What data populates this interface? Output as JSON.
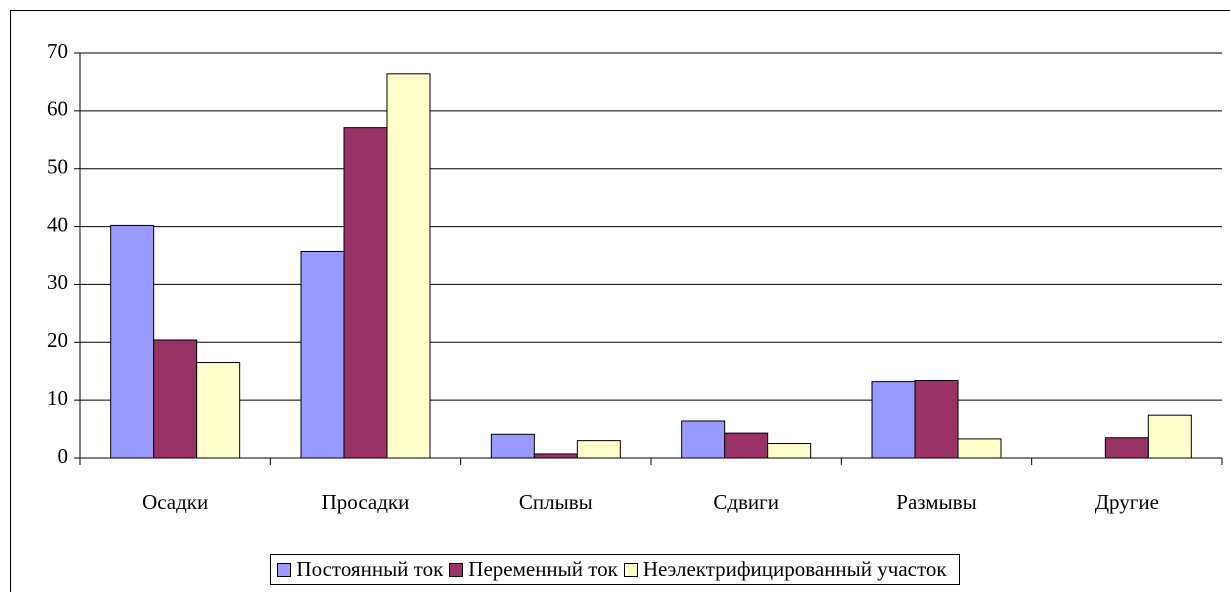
{
  "chart_data": {
    "type": "bar",
    "categories": [
      "Осадки",
      "Просадки",
      "Сплывы",
      "Сдвиги",
      "Размывы",
      "Другие"
    ],
    "series": [
      {
        "name": "Постоянный ток",
        "color": "#9999ff",
        "values": [
          40.2,
          35.7,
          4.1,
          6.4,
          13.2,
          0
        ]
      },
      {
        "name": "Переменный ток",
        "color": "#993366",
        "values": [
          20.4,
          57.1,
          0.7,
          4.3,
          13.4,
          3.5
        ]
      },
      {
        "name": "Неэлектрифицированный участок",
        "color": "#ffffcc",
        "values": [
          16.5,
          66.4,
          3.0,
          2.5,
          3.3,
          7.4
        ]
      }
    ],
    "ylim": [
      0,
      70
    ],
    "yticks": [
      0,
      10,
      20,
      30,
      40,
      50,
      60,
      70
    ],
    "grid": true,
    "legend": "bottom"
  }
}
